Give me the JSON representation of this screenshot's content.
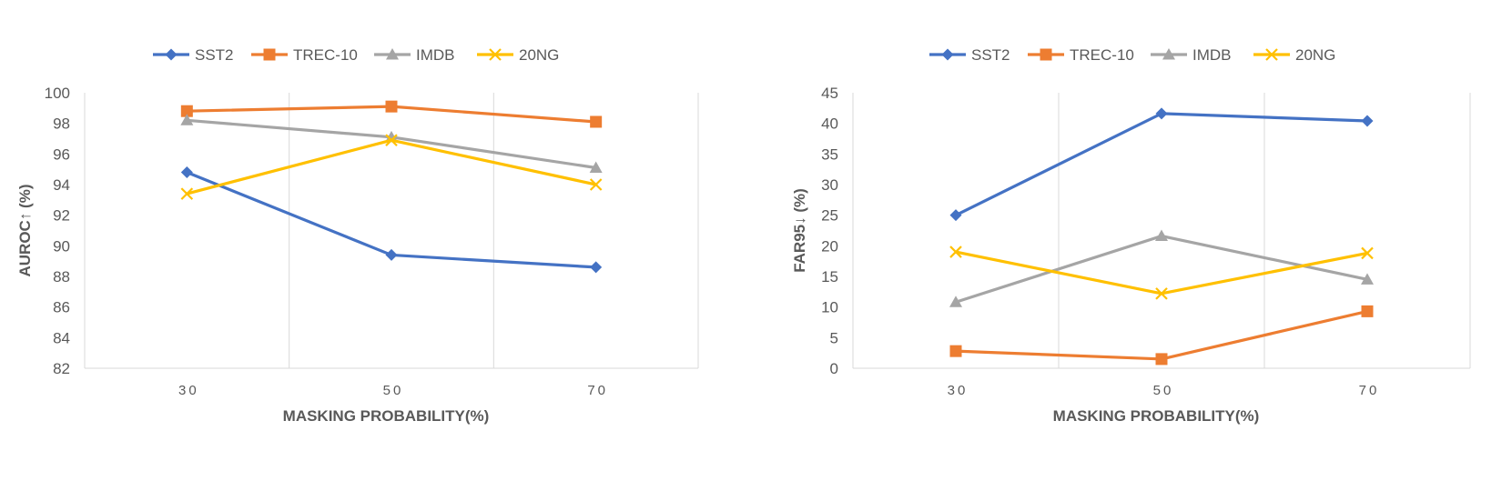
{
  "colors": {
    "SST2": "#4472C4",
    "TREC-10": "#ED7D31",
    "IMDB": "#A5A5A5",
    "20NG": "#FFC000",
    "gridline": "#D9D9D9",
    "axis_line": "#D9D9D9",
    "text": "#595959"
  },
  "chart_data": [
    {
      "type": "line",
      "categories": [
        "30",
        "50",
        "70"
      ],
      "xlabel": "MASKING PROBABILITY(%)",
      "ylabel": "AUROC↑ (%)",
      "ylim": [
        82,
        100
      ],
      "yticks": [
        82,
        84,
        86,
        88,
        90,
        92,
        94,
        96,
        98,
        100
      ],
      "legend_position": "top",
      "series": [
        {
          "name": "SST2",
          "marker": "diamond",
          "values": [
            94.8,
            89.4,
            88.6
          ]
        },
        {
          "name": "TREC-10",
          "marker": "square",
          "values": [
            98.8,
            99.1,
            98.1
          ]
        },
        {
          "name": "IMDB",
          "marker": "triangle",
          "values": [
            98.2,
            97.1,
            95.1
          ]
        },
        {
          "name": "20NG",
          "marker": "x",
          "values": [
            93.4,
            96.9,
            94.0
          ]
        }
      ]
    },
    {
      "type": "line",
      "categories": [
        "30",
        "50",
        "70"
      ],
      "xlabel": "MASKING PROBABILITY(%)",
      "ylabel": "FAR95↓ (%)",
      "ylim": [
        0,
        45
      ],
      "yticks": [
        0,
        5,
        10,
        15,
        20,
        25,
        30,
        35,
        40,
        45
      ],
      "legend_position": "top",
      "series": [
        {
          "name": "SST2",
          "marker": "diamond",
          "values": [
            25.0,
            41.6,
            40.4
          ]
        },
        {
          "name": "TREC-10",
          "marker": "square",
          "values": [
            2.8,
            1.5,
            9.3
          ]
        },
        {
          "name": "IMDB",
          "marker": "triangle",
          "values": [
            10.8,
            21.6,
            14.5
          ]
        },
        {
          "name": "20NG",
          "marker": "x",
          "values": [
            19.0,
            12.2,
            18.8
          ]
        }
      ]
    }
  ]
}
